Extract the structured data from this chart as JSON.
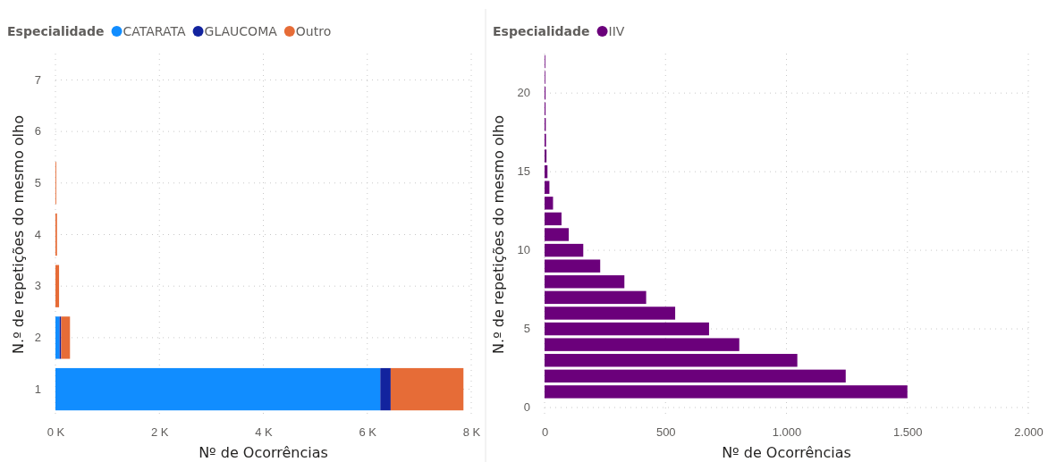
{
  "chart_data": [
    {
      "type": "bar",
      "orientation": "horizontal",
      "stacked": true,
      "xlabel": "Nº de Ocorrências",
      "ylabel": "N.º de repetições do mesmo olho",
      "legend_title": "Especialidade",
      "legend": "top left",
      "grid": true,
      "categories": [
        "7",
        "6",
        "5",
        "4",
        "3",
        "2",
        "1"
      ],
      "xlim": [
        0,
        8000
      ],
      "xticks": [
        {
          "value": 0,
          "label": "0 K"
        },
        {
          "value": 2000,
          "label": "2 K"
        },
        {
          "value": 4000,
          "label": "4 K"
        },
        {
          "value": 6000,
          "label": "6 K"
        },
        {
          "value": 8000,
          "label": "8 K"
        }
      ],
      "series": [
        {
          "name": "CATARATA",
          "color": "#118dff",
          "values": [
            null,
            null,
            null,
            null,
            null,
            80,
            6250
          ]
        },
        {
          "name": "GLAUCOMA",
          "color": "#12239e",
          "values": [
            null,
            null,
            null,
            null,
            null,
            30,
            200
          ]
        },
        {
          "name": "Outro",
          "color": "#e66c37",
          "values": [
            null,
            null,
            15,
            30,
            70,
            170,
            1400
          ]
        }
      ]
    },
    {
      "type": "bar",
      "orientation": "horizontal",
      "xlabel": "Nº de Ocorrências",
      "ylabel": "N.º de repetições do mesmo olho",
      "legend_title": "Especialidade",
      "legend": "top left",
      "grid": true,
      "categories": [
        null,
        null,
        "20",
        null,
        null,
        null,
        null,
        "15",
        null,
        null,
        null,
        null,
        "10",
        null,
        null,
        null,
        null,
        "5",
        null,
        null,
        null,
        null,
        "0"
      ],
      "xlim": [
        0,
        2000
      ],
      "xticks": [
        0,
        {
          "value": 500,
          "label": "500"
        },
        {
          "value": 1000,
          "label": "1.000"
        },
        {
          "value": 1500,
          "label": "1.500"
        },
        {
          "value": 2000,
          "label": "2.000"
        }
      ],
      "series": [
        {
          "name": "IIV",
          "color": "#6b007b",
          "values": [
            3,
            3,
            4,
            4,
            5,
            6,
            8,
            12,
            20,
            35,
            70,
            100,
            160,
            230,
            330,
            420,
            540,
            680,
            805,
            1045,
            1245,
            1500,
            null
          ]
        }
      ]
    }
  ]
}
